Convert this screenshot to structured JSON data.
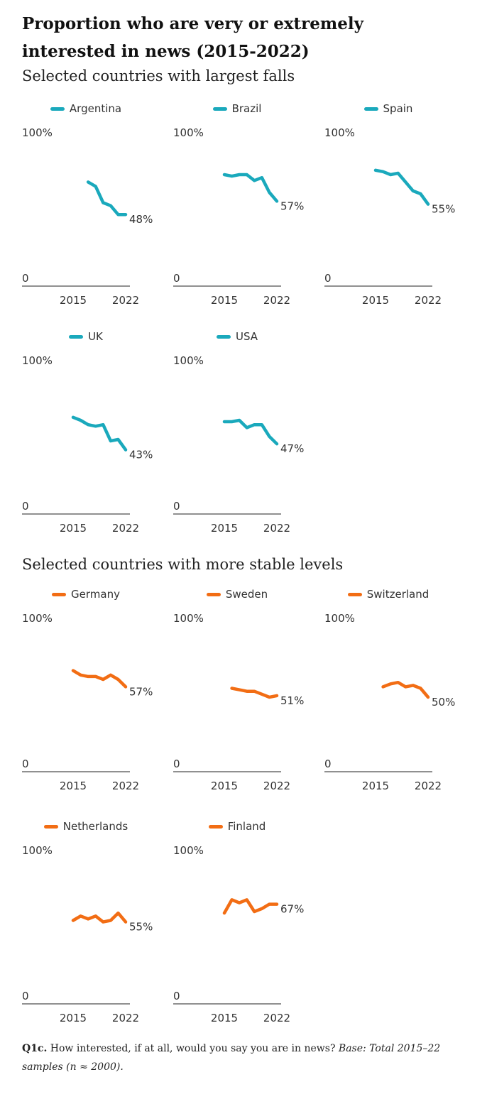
{
  "title": "Proportion who are very or extremely interested in news (2015-2022)",
  "sections": [
    {
      "label": "Selected countries with largest falls"
    },
    {
      "label": "Selected countries with more stable levels"
    }
  ],
  "note": {
    "bold": "Q1c.",
    "text": " How interested, if at all, would you say you are in news? ",
    "italic": "Base: Total 2015–22 samples (n ≈ 2000)."
  },
  "colors": {
    "falls": "#1aa9bc",
    "stable": "#f26d14"
  },
  "chart_data": [
    {
      "type": "line",
      "name": "Argentina",
      "group": "falls",
      "x": [
        2017,
        2018,
        2019,
        2020,
        2021,
        2022
      ],
      "values": [
        70,
        67,
        56,
        54,
        48,
        48
      ],
      "end_label": "48%",
      "ylim": [
        0,
        100
      ],
      "y_tick_labels": [
        "100%",
        "0"
      ],
      "x_tick_labels": [
        "2015",
        "2022"
      ]
    },
    {
      "type": "line",
      "name": "Brazil",
      "group": "falls",
      "x": [
        2015,
        2016,
        2017,
        2018,
        2019,
        2020,
        2021,
        2022
      ],
      "values": [
        75,
        74,
        75,
        75,
        71,
        73,
        63,
        57
      ],
      "end_label": "57%",
      "ylim": [
        0,
        100
      ],
      "y_tick_labels": [
        "100%",
        "0"
      ],
      "x_tick_labels": [
        "2015",
        "2022"
      ]
    },
    {
      "type": "line",
      "name": "Spain",
      "group": "falls",
      "x": [
        2015,
        2016,
        2017,
        2018,
        2019,
        2020,
        2021,
        2022
      ],
      "values": [
        78,
        77,
        75,
        76,
        70,
        64,
        62,
        55
      ],
      "end_label": "55%",
      "ylim": [
        0,
        100
      ],
      "y_tick_labels": [
        "100%",
        "0"
      ],
      "x_tick_labels": [
        "2015",
        "2022"
      ]
    },
    {
      "type": "line",
      "name": "UK",
      "group": "falls",
      "x": [
        2015,
        2016,
        2017,
        2018,
        2019,
        2020,
        2021,
        2022
      ],
      "values": [
        65,
        63,
        60,
        59,
        60,
        49,
        50,
        43
      ],
      "end_label": "43%",
      "ylim": [
        0,
        100
      ],
      "y_tick_labels": [
        "100%",
        "0"
      ],
      "x_tick_labels": [
        "2015",
        "2022"
      ]
    },
    {
      "type": "line",
      "name": "USA",
      "group": "falls",
      "x": [
        2015,
        2016,
        2017,
        2018,
        2019,
        2020,
        2021,
        2022
      ],
      "values": [
        62,
        62,
        63,
        58,
        60,
        60,
        52,
        47
      ],
      "end_label": "47%",
      "ylim": [
        0,
        100
      ],
      "y_tick_labels": [
        "100%",
        "0"
      ],
      "x_tick_labels": [
        "2015",
        "2022"
      ]
    },
    {
      "type": "line",
      "name": "Germany",
      "group": "stable",
      "x": [
        2015,
        2016,
        2017,
        2018,
        2019,
        2020,
        2021,
        2022
      ],
      "values": [
        68,
        65,
        64,
        64,
        62,
        65,
        62,
        57
      ],
      "end_label": "57%",
      "ylim": [
        0,
        100
      ],
      "y_tick_labels": [
        "100%",
        "0"
      ],
      "x_tick_labels": [
        "2015",
        "2022"
      ]
    },
    {
      "type": "line",
      "name": "Sweden",
      "group": "stable",
      "x": [
        2016,
        2017,
        2018,
        2019,
        2020,
        2021,
        2022
      ],
      "values": [
        56,
        55,
        54,
        54,
        52,
        50,
        51
      ],
      "end_label": "51%",
      "ylim": [
        0,
        100
      ],
      "y_tick_labels": [
        "100%",
        "0"
      ],
      "x_tick_labels": [
        "2015",
        "2022"
      ]
    },
    {
      "type": "line",
      "name": "Switzerland",
      "group": "stable",
      "x": [
        2016,
        2017,
        2018,
        2019,
        2020,
        2021,
        2022
      ],
      "values": [
        57,
        59,
        60,
        57,
        58,
        56,
        50
      ],
      "end_label": "50%",
      "ylim": [
        0,
        100
      ],
      "y_tick_labels": [
        "100%",
        "0"
      ],
      "x_tick_labels": [
        "2015",
        "2022"
      ]
    },
    {
      "type": "line",
      "name": "Netherlands",
      "group": "stable",
      "x": [
        2015,
        2016,
        2017,
        2018,
        2019,
        2020,
        2021,
        2022
      ],
      "values": [
        56,
        59,
        57,
        59,
        55,
        56,
        61,
        55
      ],
      "end_label": "55%",
      "ylim": [
        0,
        100
      ],
      "y_tick_labels": [
        "100%",
        "0"
      ],
      "x_tick_labels": [
        "2015",
        "2022"
      ]
    },
    {
      "type": "line",
      "name": "Finland",
      "group": "stable",
      "x": [
        2015,
        2016,
        2017,
        2018,
        2019,
        2020,
        2021,
        2022
      ],
      "values": [
        61,
        70,
        68,
        70,
        62,
        64,
        67,
        67
      ],
      "end_label": "67%",
      "ylim": [
        0,
        100
      ],
      "y_tick_labels": [
        "100%",
        "0"
      ],
      "x_tick_labels": [
        "2015",
        "2022"
      ]
    }
  ]
}
